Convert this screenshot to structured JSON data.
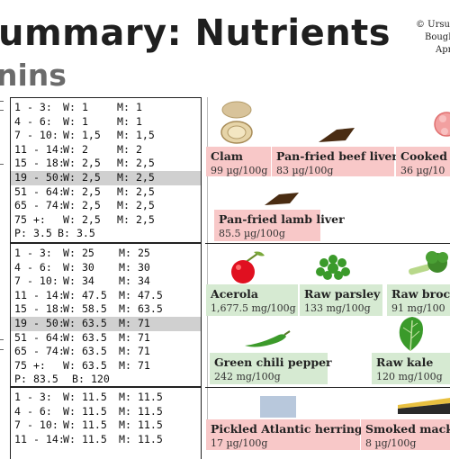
{
  "header": {
    "title": "ummary: Nutrients",
    "subtitle": "nins",
    "copyright_lines": [
      "© Ursus",
      "Bough",
      "Apr"
    ]
  },
  "requirement_tables": [
    {
      "rows": [
        {
          "age": "1 - 3:",
          "w": "W: 1",
          "m": "M: 1",
          "highlight": false
        },
        {
          "age": "4 - 6:",
          "w": "W: 1",
          "m": "M: 1",
          "highlight": false
        },
        {
          "age": "7 - 10:",
          "w": "W: 1,5",
          "m": "M: 1,5",
          "highlight": false
        },
        {
          "age": "11 - 14:",
          "w": "W: 2",
          "m": "M: 2",
          "highlight": false
        },
        {
          "age": "15 - 18:",
          "w": "W: 2,5",
          "m": "M: 2,5",
          "highlight": false
        },
        {
          "age": "19 - 50:",
          "w": "W: 2,5",
          "m": "M: 2,5",
          "highlight": true
        },
        {
          "age": "51 - 64:",
          "w": "W: 2,5",
          "m": "M: 2,5",
          "highlight": false
        },
        {
          "age": "65 - 74:",
          "w": "W: 2,5",
          "m": "M: 2,5",
          "highlight": false
        },
        {
          "age": "75 +:",
          "w": "W: 2,5",
          "m": "M: 2,5",
          "highlight": false
        },
        {
          "age": "P: 3.5",
          "w": "B: 3.5",
          "m": "",
          "highlight": false
        }
      ]
    },
    {
      "rows": [
        {
          "age": "1 - 3:",
          "w": "W: 25",
          "m": "M: 25",
          "highlight": false
        },
        {
          "age": "4 - 6:",
          "w": "W: 30",
          "m": "M: 30",
          "highlight": false
        },
        {
          "age": "7 - 10:",
          "w": "W: 34",
          "m": "M: 34",
          "highlight": false
        },
        {
          "age": "11 - 14:",
          "w": "W: 47.5",
          "m": "M: 47.5",
          "highlight": false
        },
        {
          "age": "15 - 18:",
          "w": "W: 58.5",
          "m": "M: 63.5",
          "highlight": false
        },
        {
          "age": "19 - 50:",
          "w": "W: 63.5",
          "m": "M: 71",
          "highlight": true
        },
        {
          "age": "51 - 64:",
          "w": "W: 63.5",
          "m": "M: 71",
          "highlight": false
        },
        {
          "age": "65 - 74:",
          "w": "W: 63.5",
          "m": "M: 71",
          "highlight": false
        },
        {
          "age": "75 +:",
          "w": "W: 63.5",
          "m": "M: 71",
          "highlight": false
        },
        {
          "age": "P: 83.5",
          "w": "B: 120",
          "m": "",
          "highlight": false
        }
      ]
    },
    {
      "rows": [
        {
          "age": "1 - 3:",
          "w": "W: 11.5",
          "m": "M: 11.5",
          "highlight": false
        },
        {
          "age": "4 - 6:",
          "w": "W: 11.5",
          "m": "M: 11.5",
          "highlight": false
        },
        {
          "age": "7 - 10:",
          "w": "W: 11.5",
          "m": "M: 11.5",
          "highlight": false
        },
        {
          "age": "11 - 14:",
          "w": "W: 11.5",
          "m": "M: 11.5",
          "highlight": false
        }
      ]
    }
  ],
  "foods": [
    {
      "name": "Clam",
      "amount": "99 µg/100g",
      "color": "pink",
      "icon": "clam-icon"
    },
    {
      "name": "Pan-fried beef liver",
      "amount": "83 µg/100g",
      "color": "pink",
      "icon": "beef-liver-icon"
    },
    {
      "name": "Cooked c",
      "amount": "36 µg/10",
      "color": "pink",
      "icon": "cooked-food-icon"
    },
    {
      "name": "Pan-fried lamb liver",
      "amount": "85.5 µg/100g",
      "color": "pink",
      "icon": "lamb-liver-icon"
    },
    {
      "name": "Acerola",
      "amount": "1,677.5 mg/100g",
      "color": "green",
      "icon": "acerola-icon"
    },
    {
      "name": "Raw parsley",
      "amount": "133 mg/100g",
      "color": "green",
      "icon": "parsley-icon"
    },
    {
      "name": "Raw broc",
      "amount": "91 mg/100",
      "color": "green",
      "icon": "broccoli-icon"
    },
    {
      "name": "Green chili pepper",
      "amount": "242 mg/100g",
      "color": "green",
      "icon": "chili-pepper-icon"
    },
    {
      "name": "Raw kale",
      "amount": "120 mg/100g",
      "color": "green",
      "icon": "kale-icon"
    },
    {
      "name": "Pickled Atlantic herring",
      "amount": "17 µg/100g",
      "color": "pink",
      "icon": "herring-icon"
    },
    {
      "name": "Smoked mack",
      "amount": "8 µg/100g",
      "color": "pink",
      "icon": "mackerel-icon"
    }
  ],
  "colors": {
    "pink": "#f8c8c8",
    "green": "#d6ead2",
    "highlight": "#d0d0d0"
  }
}
